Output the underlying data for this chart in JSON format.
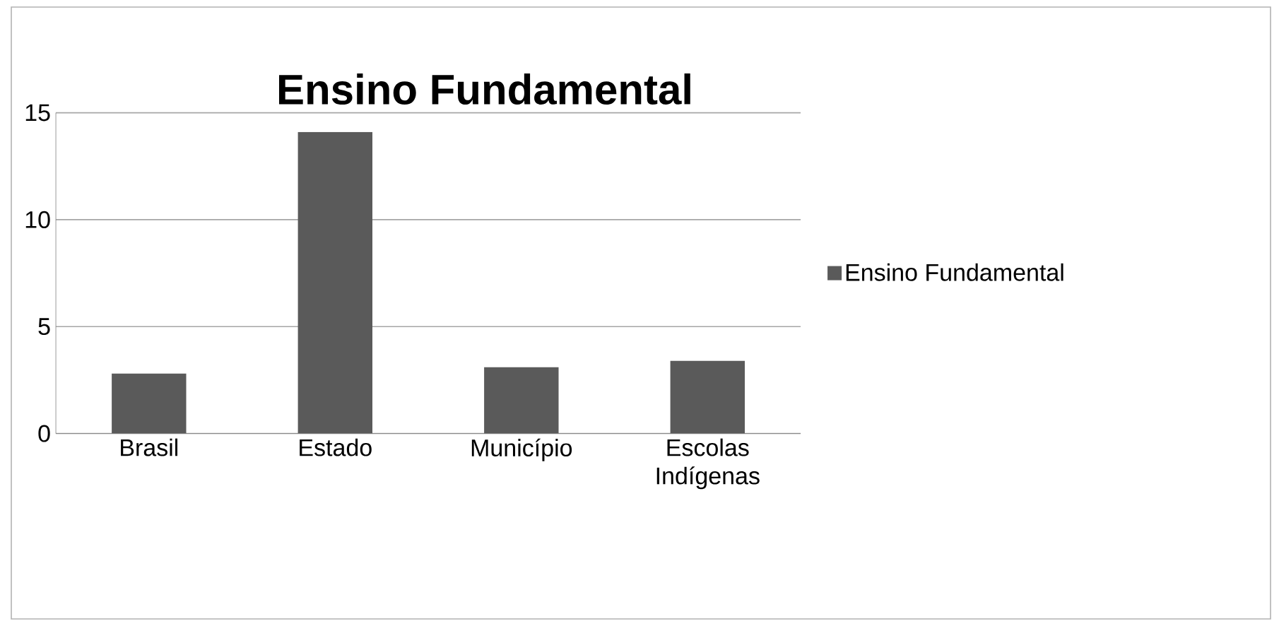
{
  "chart_data": {
    "type": "bar",
    "title": "Ensino Fundamental",
    "categories": [
      "Brasil",
      "Estado",
      "Município",
      "Escolas Indígenas"
    ],
    "series": [
      {
        "name": "Ensino Fundamental",
        "color": "#5a5a5a",
        "values": [
          2.8,
          14.1,
          3.1,
          3.4
        ]
      }
    ],
    "ylim": [
      0,
      15
    ],
    "yticks": [
      0,
      5,
      10,
      15
    ],
    "grid": "y",
    "legend": "right"
  }
}
